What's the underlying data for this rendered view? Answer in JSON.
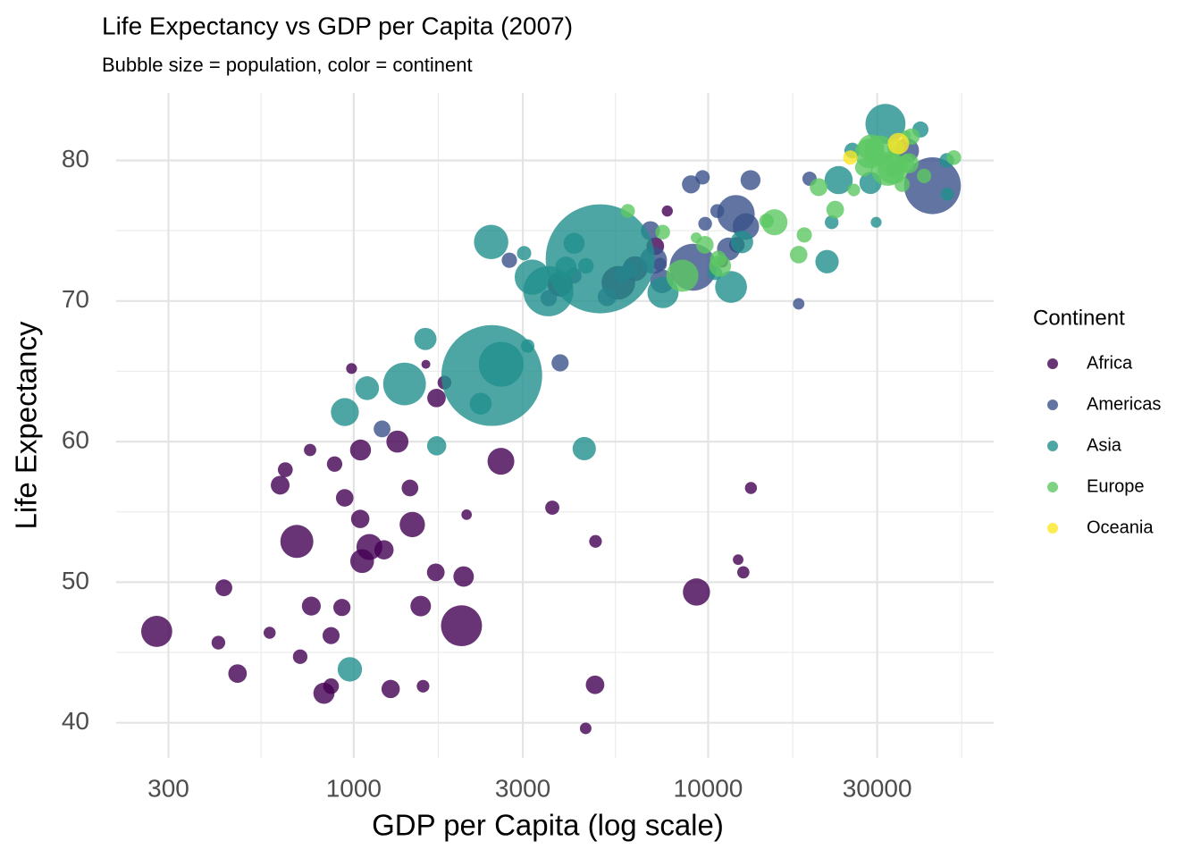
{
  "chart_data": {
    "type": "scatter",
    "title": "Life Expectancy vs GDP per Capita (2007)",
    "subtitle": "Bubble size = population, color = continent",
    "x_label": "GDP per Capita (log scale)",
    "y_label": "Life Expectancy",
    "legend_title": "Continent",
    "legend_position": "right",
    "x_log": true,
    "grid": true,
    "xlim": [
      213.6,
      63940
    ],
    "ylim": [
      37.5,
      84.8
    ],
    "xticks": [
      300,
      1000,
      3000,
      10000,
      30000
    ],
    "yticks": [
      40,
      50,
      60,
      70,
      80
    ],
    "series": [
      {
        "name": "Africa",
        "color": "#440154",
        "x": [
          6223,
          4797,
          1441,
          12570,
          1217,
          430,
          2042,
          706,
          1704,
          986,
          278,
          3633,
          1545,
          2082,
          5581,
          12154,
          641,
          691,
          13206,
          753,
          1328,
          943,
          579,
          1463,
          1569,
          415,
          12058,
          1045,
          759,
          1043,
          1803,
          10957,
          3820,
          824,
          4811,
          620,
          2014,
          7670,
          863,
          1598,
          1712,
          863,
          926,
          9270,
          2602,
          4513,
          1107,
          883,
          7093,
          1056,
          1271,
          470
        ],
        "values": [
          72.3,
          42.7,
          56.7,
          50.7,
          52.3,
          49.6,
          50.4,
          44.7,
          50.7,
          65.2,
          46.5,
          55.3,
          48.3,
          54.8,
          71.3,
          51.6,
          58.0,
          52.9,
          56.7,
          59.4,
          60.0,
          56.0,
          46.4,
          54.1,
          42.6,
          45.7,
          74.0,
          59.4,
          48.3,
          54.5,
          64.2,
          72.8,
          71.2,
          42.1,
          52.9,
          56.9,
          46.9,
          76.4,
          46.2,
          65.5,
          63.1,
          42.6,
          48.2,
          49.3,
          58.6,
          39.6,
          52.5,
          58.4,
          73.9,
          51.5,
          42.4,
          43.5
        ],
        "sizes": [
          33333216,
          12420476,
          8078314,
          1639131,
          14326203,
          8390505,
          17696293,
          4369038,
          10238807,
          710960,
          64606759,
          3800610,
          18013409,
          496374,
          80264543,
          551201,
          4906585,
          76511887,
          1454867,
          1688359,
          22873338,
          9947814,
          1472041,
          35610177,
          2012649,
          3193942,
          6036914,
          19167654,
          13327079,
          12031795,
          3270065,
          1250882,
          33757175,
          19951656,
          2055080,
          12894865,
          135031164,
          798094,
          8860588,
          199579,
          12267493,
          6144562,
          9118773,
          43997828,
          42292929,
          1133066,
          38139640,
          5701579,
          10276158,
          29170398,
          11746035,
          12311143
        ]
      },
      {
        "name": "Americas",
        "color": "#3B528B",
        "x": [
          12779,
          3822,
          9066,
          36319,
          13172,
          7007,
          9645,
          8948,
          6025,
          6873,
          5728,
          5186,
          1202,
          3548,
          7321,
          11978,
          2749,
          9809,
          4173,
          7409,
          19329,
          18009,
          42952,
          10611,
          11416
        ],
        "values": [
          75.3,
          65.6,
          72.4,
          80.7,
          78.6,
          72.9,
          78.8,
          78.3,
          72.2,
          75.0,
          71.9,
          70.3,
          60.9,
          70.2,
          72.6,
          76.2,
          72.9,
          75.5,
          71.8,
          71.4,
          78.7,
          69.8,
          78.2,
          76.4,
          73.7
        ],
        "sizes": [
          40301927,
          9119152,
          190010647,
          33390141,
          16284741,
          44227550,
          4133884,
          11416987,
          9319622,
          13755680,
          6939688,
          12572928,
          8502814,
          7483763,
          2780132,
          108700891,
          5675356,
          3242173,
          6667147,
          28674757,
          3942491,
          1056608,
          301139947,
          3447496,
          26084662
        ]
      },
      {
        "name": "Asia",
        "color": "#21908C",
        "x": [
          975,
          29796,
          1391,
          1714,
          4959,
          39725,
          2452,
          3541,
          11606,
          4471,
          25523,
          31656,
          4519,
          1593,
          23348,
          47307,
          10461,
          12452,
          3096,
          944,
          1091,
          22316,
          2606,
          3190,
          21655,
          47143,
          3970,
          4185,
          28718,
          7458,
          2442,
          3025,
          2281
        ],
        "values": [
          43.8,
          75.6,
          64.1,
          59.7,
          73.0,
          82.2,
          64.7,
          70.7,
          71.0,
          59.5,
          80.7,
          82.6,
          72.5,
          67.3,
          78.6,
          77.6,
          72.0,
          74.2,
          66.8,
          62.1,
          63.8,
          75.6,
          65.5,
          71.7,
          72.8,
          80.0,
          72.4,
          74.1,
          78.4,
          70.6,
          74.2,
          73.4,
          62.7
        ],
        "sizes": [
          31889923,
          708573,
          150448339,
          14131858,
          1318683096,
          6980412,
          1110396331,
          223547000,
          69453570,
          27499638,
          6426679,
          127467972,
          6053193,
          23301725,
          49044790,
          2505559,
          3921278,
          24821286,
          2874127,
          47761980,
          28901790,
          3204897,
          169270617,
          91077287,
          27601038,
          4553009,
          20378239,
          19314747,
          23174294,
          65068149,
          85262356,
          4018332,
          22211743
        ]
      },
      {
        "name": "Europe",
        "color": "#5DC863",
        "x": [
          5937,
          36126,
          33693,
          7446,
          10681,
          14619,
          22833,
          35278,
          33207,
          30470,
          32170,
          27538,
          18009,
          36181,
          40676,
          28570,
          9254,
          36798,
          49357,
          15390,
          20510,
          10808,
          9787,
          18678,
          25768,
          28821,
          33860,
          37506,
          8458,
          33203
        ],
        "values": [
          76.4,
          79.8,
          79.4,
          74.9,
          73.0,
          75.7,
          76.5,
          78.3,
          79.3,
          80.7,
          79.4,
          79.5,
          73.3,
          81.8,
          78.9,
          80.5,
          74.5,
          79.8,
          80.2,
          75.6,
          78.1,
          72.5,
          74.0,
          74.7,
          77.9,
          80.9,
          80.9,
          81.7,
          71.8,
          79.4
        ],
        "sizes": [
          3600523,
          8199783,
          10392226,
          4552198,
          7322858,
          4493312,
          10228744,
          5468120,
          5238460,
          61083916,
          82400996,
          10706290,
          9956108,
          301931,
          4109086,
          58147733,
          684736,
          16570613,
          4627926,
          38518241,
          10642836,
          22276056,
          10150265,
          5447502,
          2009245,
          40448191,
          9031088,
          7554661,
          71158647,
          60776238
        ]
      },
      {
        "name": "Oceania",
        "color": "#FDE725",
        "x": [
          34435,
          25185
        ],
        "values": [
          81.2,
          80.2
        ],
        "sizes": [
          20434176,
          4115771
        ]
      }
    ]
  }
}
